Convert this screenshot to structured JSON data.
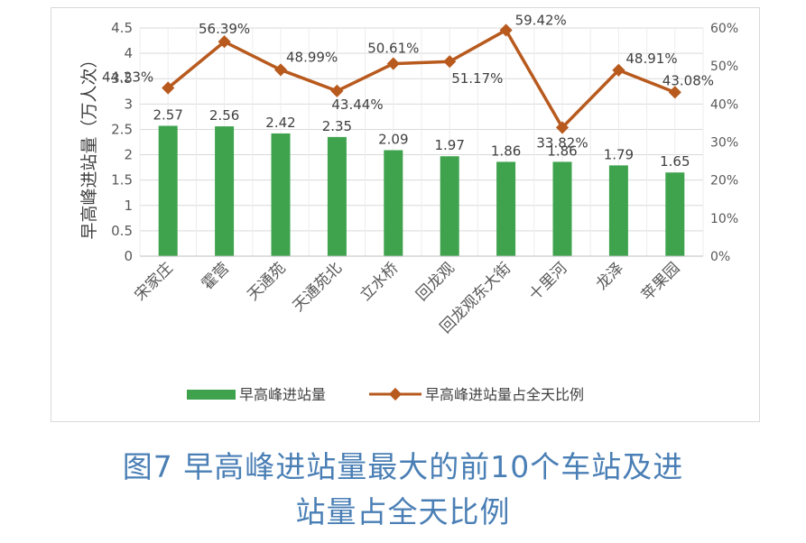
{
  "chart_data": {
    "type": "bar+line",
    "categories": [
      "宋家庄",
      "霍营",
      "天通苑",
      "天通苑北",
      "立水桥",
      "回龙观",
      "回龙观东大街",
      "十里河",
      "龙泽",
      "苹果园"
    ],
    "series": [
      {
        "name": "早高峰进站量",
        "type": "bar",
        "axis": "left",
        "color": "#3fa34d",
        "values": [
          2.57,
          2.56,
          2.42,
          2.35,
          2.09,
          1.97,
          1.86,
          1.86,
          1.79,
          1.65
        ],
        "labels": [
          "2.57",
          "2.56",
          "2.42",
          "2.35",
          "2.09",
          "1.97",
          "1.86",
          "1.86",
          "1.79",
          "1.65"
        ]
      },
      {
        "name": "早高峰进站量占全天比例",
        "type": "line",
        "axis": "right",
        "color": "#b85a1e",
        "values": [
          44.23,
          56.39,
          48.99,
          43.44,
          50.61,
          51.17,
          59.42,
          33.82,
          48.91,
          43.08
        ],
        "labels": [
          "44.23%",
          "56.39%",
          "48.99%",
          "43.44%",
          "50.61%",
          "51.17%",
          "59.42%",
          "33.82%",
          "48.91%",
          "43.08%"
        ]
      }
    ],
    "ylabel": "早高峰进站量（万人次）",
    "ylim": [
      0,
      4.5
    ],
    "yticks": [
      "0",
      "0.5",
      "1",
      "1.5",
      "2",
      "2.5",
      "3",
      "3.5",
      "4",
      "4.5"
    ],
    "y2lim": [
      0,
      60
    ],
    "y2ticks": [
      "0%",
      "10%",
      "20%",
      "30%",
      "40%",
      "50%",
      "60%"
    ],
    "grid": true,
    "legend_position": "bottom"
  },
  "caption": {
    "line1": "图7 早高峰进站量最大的前10个车站及进",
    "line2": "站量占全天比例"
  }
}
